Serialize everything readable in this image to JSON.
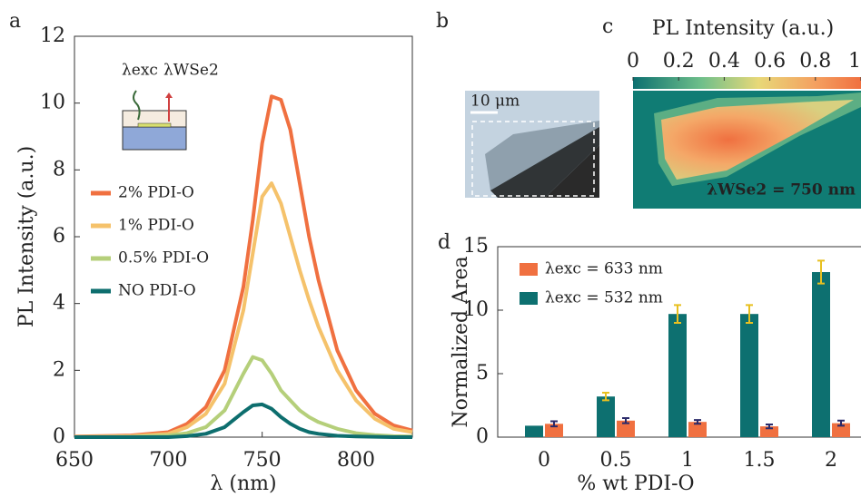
{
  "chart_data": [
    {
      "type": "line",
      "panel_label": "a",
      "xlabel": "λ (nm)",
      "ylabel": "PL Intensity (a.u.)",
      "xlim": [
        650,
        830
      ],
      "ylim": [
        0,
        12
      ],
      "xticks": [
        650,
        700,
        750,
        800
      ],
      "yticks": [
        0,
        2,
        4,
        6,
        8,
        10,
        12
      ],
      "x": [
        650,
        680,
        700,
        710,
        720,
        730,
        740,
        745,
        750,
        755,
        760,
        765,
        770,
        775,
        780,
        790,
        800,
        810,
        820,
        830
      ],
      "series": [
        {
          "name": "2% PDI-O",
          "color": "#f07040",
          "values": [
            0.02,
            0.05,
            0.15,
            0.4,
            0.9,
            2.0,
            4.5,
            6.5,
            8.8,
            10.2,
            10.1,
            9.2,
            7.6,
            6.0,
            4.7,
            2.6,
            1.4,
            0.7,
            0.35,
            0.2
          ]
        },
        {
          "name": "1% PDI-O",
          "color": "#f5c26b",
          "values": [
            0.01,
            0.03,
            0.1,
            0.3,
            0.7,
            1.6,
            3.8,
            5.5,
            7.2,
            7.6,
            7.0,
            6.0,
            5.0,
            4.1,
            3.3,
            2.0,
            1.1,
            0.55,
            0.25,
            0.15
          ]
        },
        {
          "name": "0.5% PDI-O",
          "color": "#b5cf7a",
          "values": [
            0,
            0.01,
            0.05,
            0.12,
            0.3,
            0.8,
            1.9,
            2.4,
            2.3,
            1.9,
            1.4,
            1.1,
            0.8,
            0.6,
            0.45,
            0.25,
            0.12,
            0.06,
            0.03,
            0.02
          ]
        },
        {
          "name": "NO PDI-O",
          "color": "#0d6e6e",
          "values": [
            0,
            0,
            0,
            0.03,
            0.1,
            0.3,
            0.75,
            0.95,
            0.98,
            0.85,
            0.6,
            0.4,
            0.25,
            0.15,
            0.1,
            0.04,
            0.02,
            0.01,
            0,
            0
          ]
        }
      ],
      "inset_labels": [
        "λexc",
        "λWSe2"
      ]
    },
    {
      "type": "image",
      "panel_label": "b",
      "scale_bar": "10 μm"
    },
    {
      "type": "colorbar",
      "panel_label": "c",
      "title": "PL Intensity (a.u.)",
      "xlim": [
        0,
        1
      ],
      "xticks": [
        0,
        0.2,
        0.4,
        0.6,
        0.8,
        1
      ],
      "annotation": "λWSe2 = 750 nm"
    },
    {
      "type": "bar",
      "panel_label": "d",
      "xlabel": "% wt PDI-O",
      "ylabel": "Normalized Area",
      "categories": [
        "0",
        "0.5",
        "1",
        "1.5",
        "2"
      ],
      "ylim": [
        0,
        15
      ],
      "yticks": [
        0,
        5,
        10,
        15
      ],
      "series": [
        {
          "name": "λexc = 633 nm",
          "color": "#f07040",
          "errorbar_color": "#2a2a6a",
          "values": [
            1.05,
            1.3,
            1.2,
            0.85,
            1.1
          ],
          "errors": [
            0.2,
            0.2,
            0.15,
            0.15,
            0.2
          ]
        },
        {
          "name": "λexc = 532 nm",
          "color": "#0d7070",
          "errorbar_color": "#e8c020",
          "values": [
            0.9,
            3.2,
            9.7,
            9.7,
            13.0
          ],
          "errors": [
            0,
            0.3,
            0.7,
            0.7,
            0.9
          ]
        }
      ]
    }
  ]
}
